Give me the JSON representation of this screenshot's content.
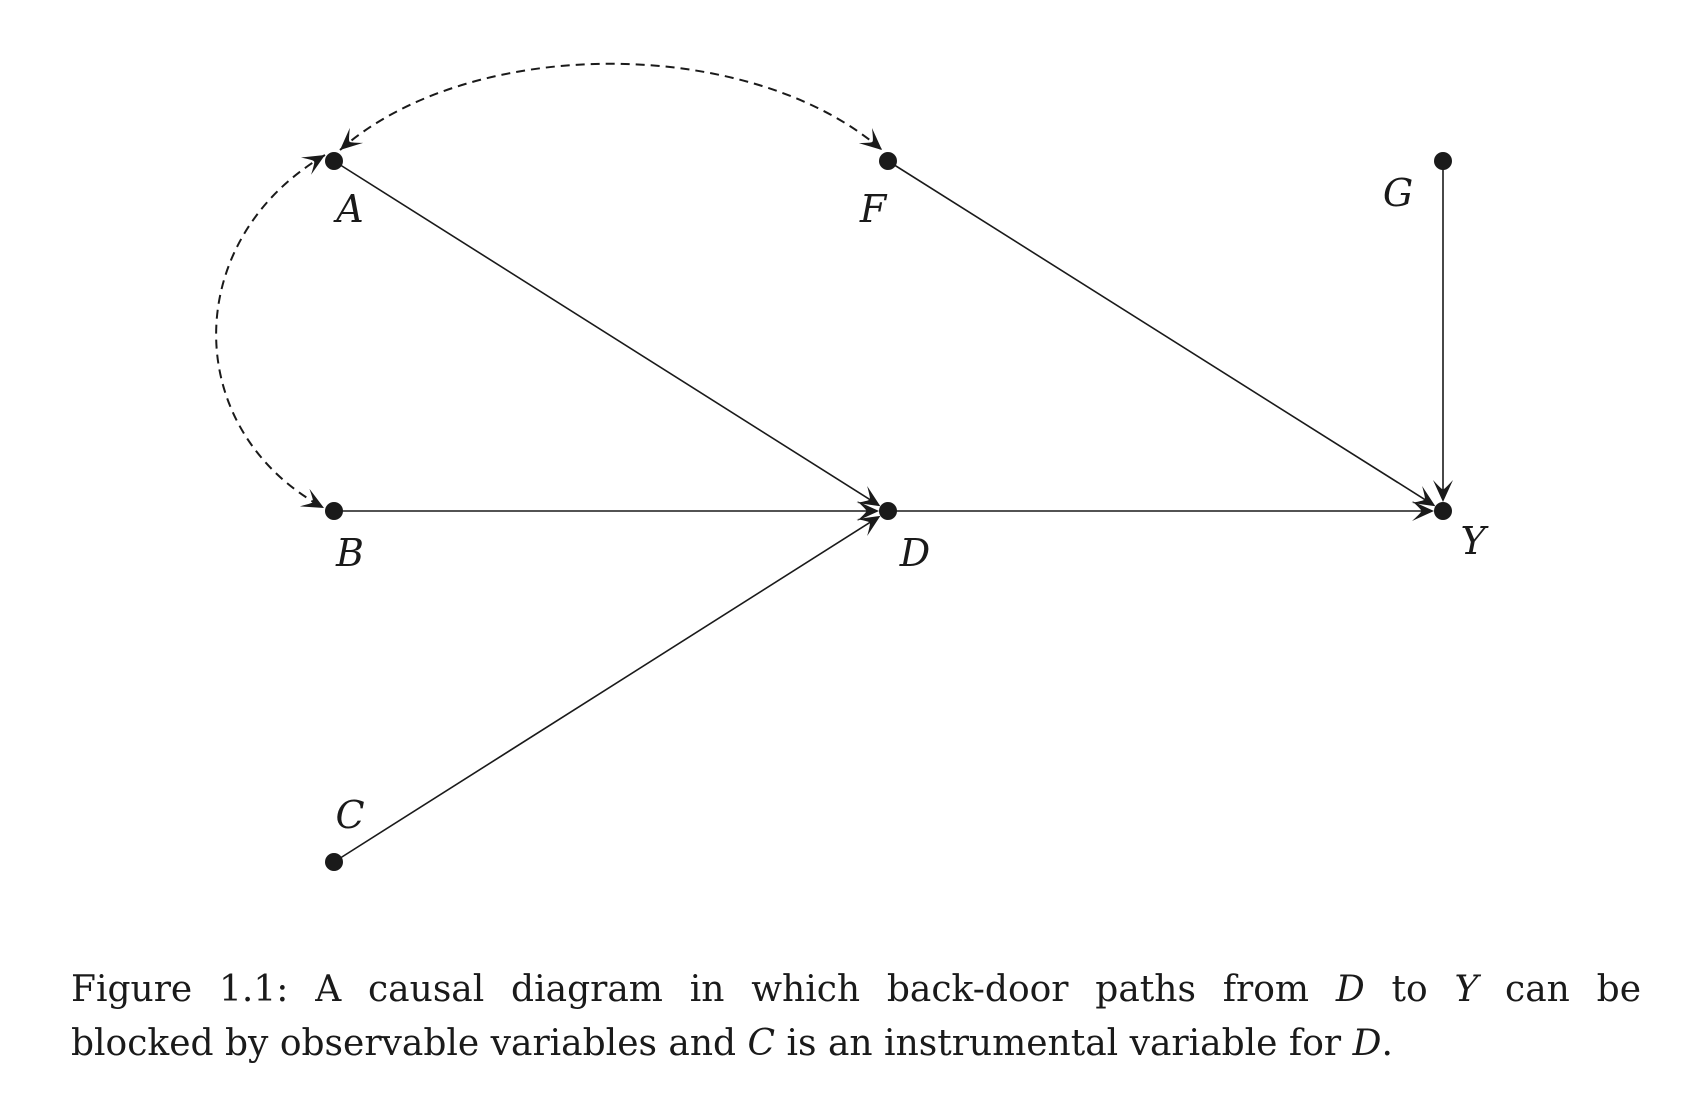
{
  "diagram": {
    "nodes": [
      {
        "id": "A",
        "label": "A"
      },
      {
        "id": "B",
        "label": "B"
      },
      {
        "id": "C",
        "label": "C"
      },
      {
        "id": "D",
        "label": "D"
      },
      {
        "id": "F",
        "label": "F"
      },
      {
        "id": "G",
        "label": "G"
      },
      {
        "id": "Y",
        "label": "Y"
      }
    ],
    "edges": [
      {
        "from": "A",
        "to": "D",
        "style": "solid",
        "directed": true
      },
      {
        "from": "B",
        "to": "D",
        "style": "solid",
        "directed": true
      },
      {
        "from": "C",
        "to": "D",
        "style": "solid",
        "directed": true
      },
      {
        "from": "D",
        "to": "Y",
        "style": "solid",
        "directed": true
      },
      {
        "from": "F",
        "to": "Y",
        "style": "solid",
        "directed": true
      },
      {
        "from": "G",
        "to": "Y",
        "style": "solid",
        "directed": true
      },
      {
        "from": "A",
        "to": "F",
        "style": "dashed",
        "bidirected": true
      },
      {
        "from": "A",
        "to": "B",
        "style": "dashed",
        "bidirected": true
      }
    ],
    "colors": {
      "ink": "#1a1a1a",
      "background": "#ffffff"
    }
  },
  "caption": {
    "line1_prefix": "Figure 1.1:  A causal diagram in which back-door paths from ",
    "line1_var1": "D",
    "line1_mid": " to ",
    "line1_var2": "Y",
    "line1_suffix": " can be",
    "line2_prefix": "blocked by observable variables and ",
    "line2_var1": "C",
    "line2_mid": " is an instrumental variable for ",
    "line2_var2": "D",
    "line2_suffix": "."
  }
}
